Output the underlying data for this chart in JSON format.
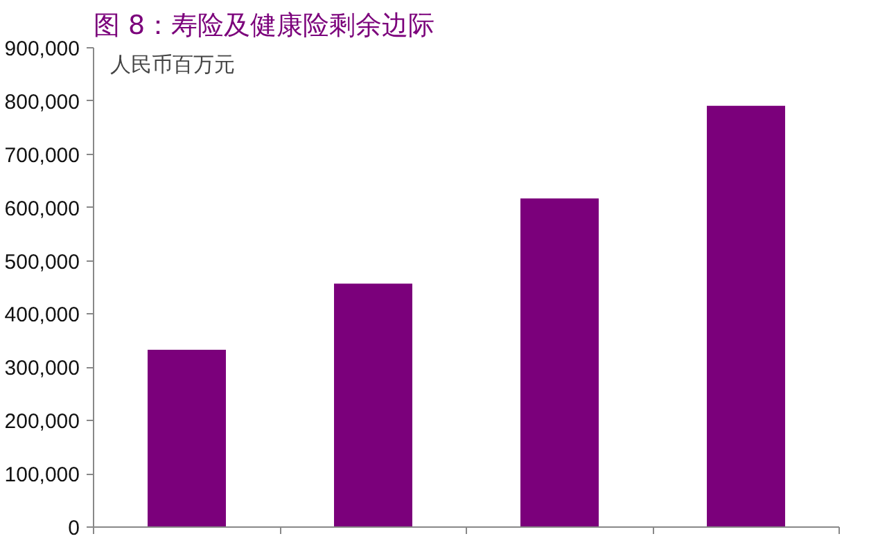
{
  "chart_data": {
    "type": "bar",
    "title": "图 8：寿险及健康险剩余边际",
    "categories": [
      null,
      null,
      null,
      null
    ],
    "values": [
      333000,
      457000,
      617000,
      791000
    ],
    "color": "#7b007b",
    "ylim": [
      0,
      900000
    ],
    "yticks": [
      {
        "value": 0,
        "label": "0"
      },
      {
        "value": 100000,
        "label": "100,000"
      },
      {
        "value": 200000,
        "label": "200,000"
      },
      {
        "value": 300000,
        "label": "300,000"
      },
      {
        "value": 400000,
        "label": "400,000"
      },
      {
        "value": 500000,
        "label": "500,000"
      },
      {
        "value": 600000,
        "label": "600,000"
      },
      {
        "value": 700000,
        "label": "700,000"
      },
      {
        "value": 800000,
        "label": "800,000"
      },
      {
        "value": 900000,
        "label": "900,000"
      }
    ],
    "annotations": [
      "人民币百万元"
    ],
    "grid": false
  }
}
